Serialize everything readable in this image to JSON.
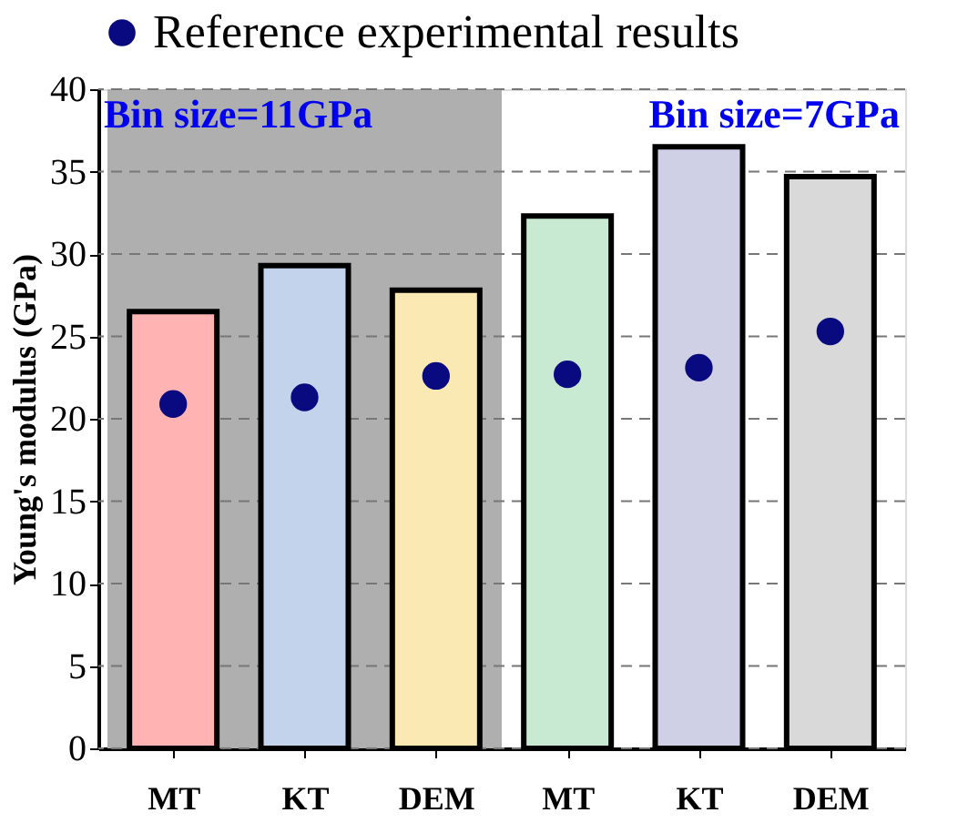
{
  "chart_data": {
    "type": "bar",
    "ylabel": "Young's modulus (GPa)",
    "categories": [
      "MT",
      "KT",
      "DEM",
      "MT",
      "KT",
      "DEM"
    ],
    "series": [
      {
        "type": "bar",
        "colors": [
          "#ffb3b3",
          "#c3d3ec",
          "#fbe9b3",
          "#c8ead3",
          "#cfcfe6",
          "#d9d9d9"
        ],
        "values": [
          26.5,
          29.3,
          27.8,
          32.3,
          36.5,
          34.7
        ]
      },
      {
        "type": "scatter",
        "name": "Reference experimental results",
        "color": "#0a0a80",
        "values": [
          20.9,
          21.3,
          22.6,
          22.7,
          23.1,
          25.3
        ]
      }
    ],
    "ylim": [
      0,
      40
    ],
    "yticks": [
      0,
      5,
      10,
      15,
      20,
      25,
      30,
      35,
      40
    ],
    "bands": [
      {
        "axis": "x",
        "from": "MT",
        "to": "DEM",
        "color": "#afafaf"
      }
    ],
    "annotations": [
      "Bin size=11GPa",
      "Bin size=7GPa"
    ],
    "grid": "y",
    "legend": "top",
    "marker": "circle"
  }
}
